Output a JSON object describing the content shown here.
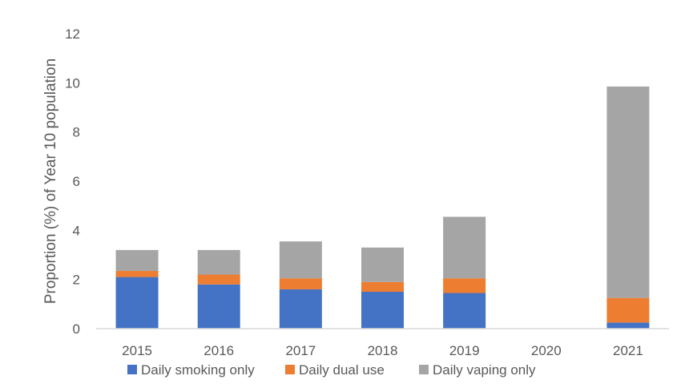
{
  "chart_data": {
    "type": "bar",
    "stacked": true,
    "title": "",
    "xlabel": "",
    "ylabel": "Proportion (%) of Year 10 population",
    "ylim": [
      0,
      12
    ],
    "yticks": [
      0,
      2,
      4,
      6,
      8,
      10,
      12
    ],
    "grid": false,
    "legend_position": "bottom",
    "categories": [
      "2015",
      "2016",
      "2017",
      "2018",
      "2019",
      "2020",
      "2021"
    ],
    "series": [
      {
        "name": "Daily smoking only",
        "color": "#4472C4",
        "values": [
          2.1,
          1.8,
          1.6,
          1.5,
          1.45,
          null,
          0.25
        ]
      },
      {
        "name": "Daily dual use",
        "color": "#ED7D31",
        "values": [
          0.25,
          0.4,
          0.45,
          0.4,
          0.6,
          null,
          1.0
        ]
      },
      {
        "name": "Daily vaping only",
        "color": "#A5A5A5",
        "values": [
          0.85,
          1.0,
          1.5,
          1.4,
          2.5,
          null,
          8.6
        ]
      }
    ]
  }
}
